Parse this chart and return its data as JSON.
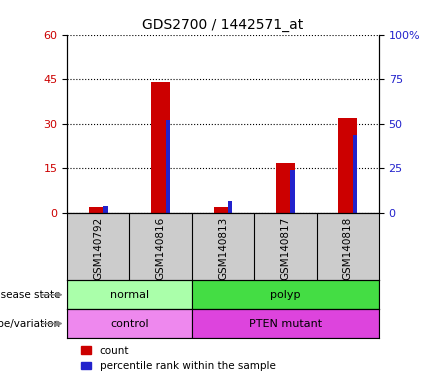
{
  "title": "GDS2700 / 1442571_at",
  "samples": [
    "GSM140792",
    "GSM140816",
    "GSM140813",
    "GSM140817",
    "GSM140818"
  ],
  "count_values": [
    2,
    44,
    2,
    17,
    32
  ],
  "percentile_values": [
    4,
    52,
    7,
    24,
    44
  ],
  "left_ylim": [
    0,
    60
  ],
  "right_ylim": [
    0,
    100
  ],
  "left_yticks": [
    0,
    15,
    30,
    45,
    60
  ],
  "right_yticks": [
    0,
    25,
    50,
    75,
    100
  ],
  "right_yticklabels": [
    "0",
    "25",
    "50",
    "75",
    "100%"
  ],
  "bar_color_red": "#cc0000",
  "bar_color_blue": "#2222cc",
  "red_bar_width": 0.3,
  "blue_bar_width": 0.07,
  "disease_state": [
    {
      "label": "normal",
      "span": [
        0,
        2
      ],
      "color": "#aaffaa"
    },
    {
      "label": "polyp",
      "span": [
        2,
        5
      ],
      "color": "#44dd44"
    }
  ],
  "genotype": [
    {
      "label": "control",
      "span": [
        0,
        2
      ],
      "color": "#ee88ee"
    },
    {
      "label": "PTEN mutant",
      "span": [
        2,
        5
      ],
      "color": "#dd44dd"
    }
  ],
  "legend_items": [
    "count",
    "percentile rank within the sample"
  ],
  "left_label_color": "#cc0000",
  "right_label_color": "#2222cc",
  "background_color": "#ffffff",
  "plot_bg_color": "#ffffff",
  "tick_area_bg": "#cccccc",
  "label_row_labels": [
    "disease state",
    "genotype/variation"
  ]
}
